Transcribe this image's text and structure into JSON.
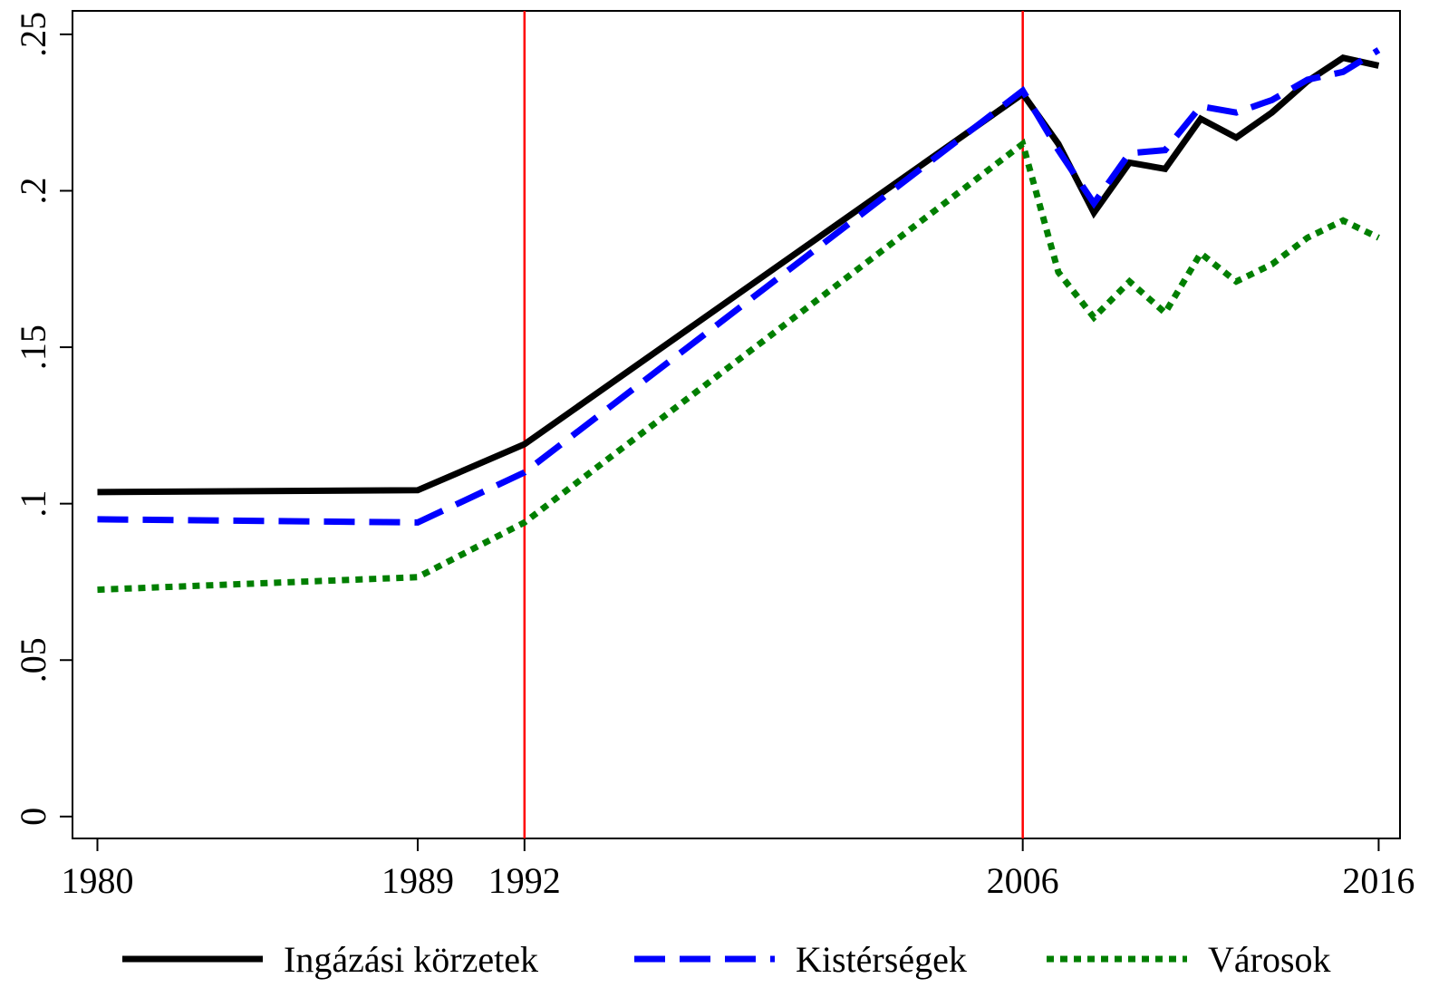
{
  "chart_data": {
    "type": "line",
    "x": [
      1980,
      1989,
      1992,
      2006,
      2007,
      2008,
      2009,
      2010,
      2011,
      2012,
      2013,
      2014,
      2015,
      2016
    ],
    "series": [
      {
        "name": "Ingázási körzetek",
        "color": "#000000",
        "style": "solid",
        "values": [
          0.1037,
          0.1043,
          0.119,
          0.231,
          0.215,
          0.193,
          0.209,
          0.207,
          0.223,
          0.217,
          0.225,
          0.235,
          0.2425,
          0.24
        ]
      },
      {
        "name": "Kistérségek",
        "color": "#0000ff",
        "style": "dashed",
        "values": [
          0.095,
          0.094,
          0.11,
          0.232,
          0.213,
          0.196,
          0.212,
          0.213,
          0.227,
          0.225,
          0.229,
          0.2355,
          0.238,
          0.245
        ]
      },
      {
        "name": "Városok",
        "color": "#007f00",
        "style": "dotted",
        "values": [
          0.0725,
          0.0765,
          0.094,
          0.215,
          0.174,
          0.1595,
          0.171,
          0.161,
          0.18,
          0.171,
          0.1765,
          0.185,
          0.1905,
          0.185
        ]
      }
    ],
    "xlim": [
      1979.3,
      2016.6
    ],
    "ylim": [
      -0.007,
      0.2575
    ],
    "xticks": [
      1980,
      1989,
      1992,
      2006,
      2016
    ],
    "yticks": [
      0,
      {
        "value": 0.05,
        "label": ".05"
      },
      {
        "value": 0.1,
        "label": ".1"
      },
      {
        "value": 0.15,
        "label": ".15"
      },
      {
        "value": 0.2,
        "label": ".2"
      },
      {
        "value": 0.25,
        "label": ".25"
      }
    ],
    "vlines": [
      1992,
      2006
    ],
    "vline_color": "#ff0000",
    "legend": "bottom"
  }
}
